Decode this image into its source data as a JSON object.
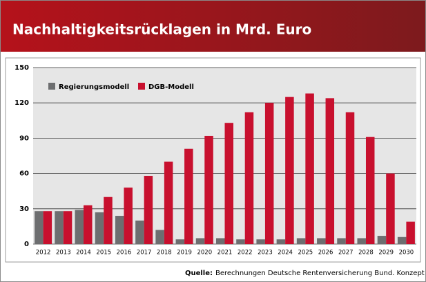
{
  "chart_data": {
    "type": "bar",
    "title": "Nachhaltigkeitsrücklagen in Mrd. Euro",
    "categories": [
      "2012",
      "2013",
      "2014",
      "2015",
      "2016",
      "2017",
      "2018",
      "2019",
      "2020",
      "2021",
      "2022",
      "2023",
      "2024",
      "2025",
      "2026",
      "2027",
      "2028",
      "2029",
      "2030"
    ],
    "series": [
      {
        "name": "Regierungsmodell",
        "color": "#6d6e70",
        "values": [
          28,
          28,
          29,
          27,
          24,
          20,
          12,
          4,
          5,
          5,
          4,
          4,
          4,
          5,
          5,
          5,
          5,
          7,
          6
        ]
      },
      {
        "name": "DGB-Modell",
        "color": "#c8102e",
        "values": [
          28,
          28,
          33,
          40,
          48,
          58,
          70,
          81,
          92,
          103,
          112,
          120,
          125,
          128,
          124,
          112,
          91,
          60,
          19
        ]
      }
    ],
    "ylim": [
      0,
      150
    ],
    "yticks": [
      0,
      30,
      60,
      90,
      120,
      150
    ],
    "grid": true,
    "legend": "top-left"
  },
  "source": {
    "label": "Quelle:",
    "text": "Berechnungen Deutsche Rentenversicherung Bund. Konzept DGB"
  }
}
